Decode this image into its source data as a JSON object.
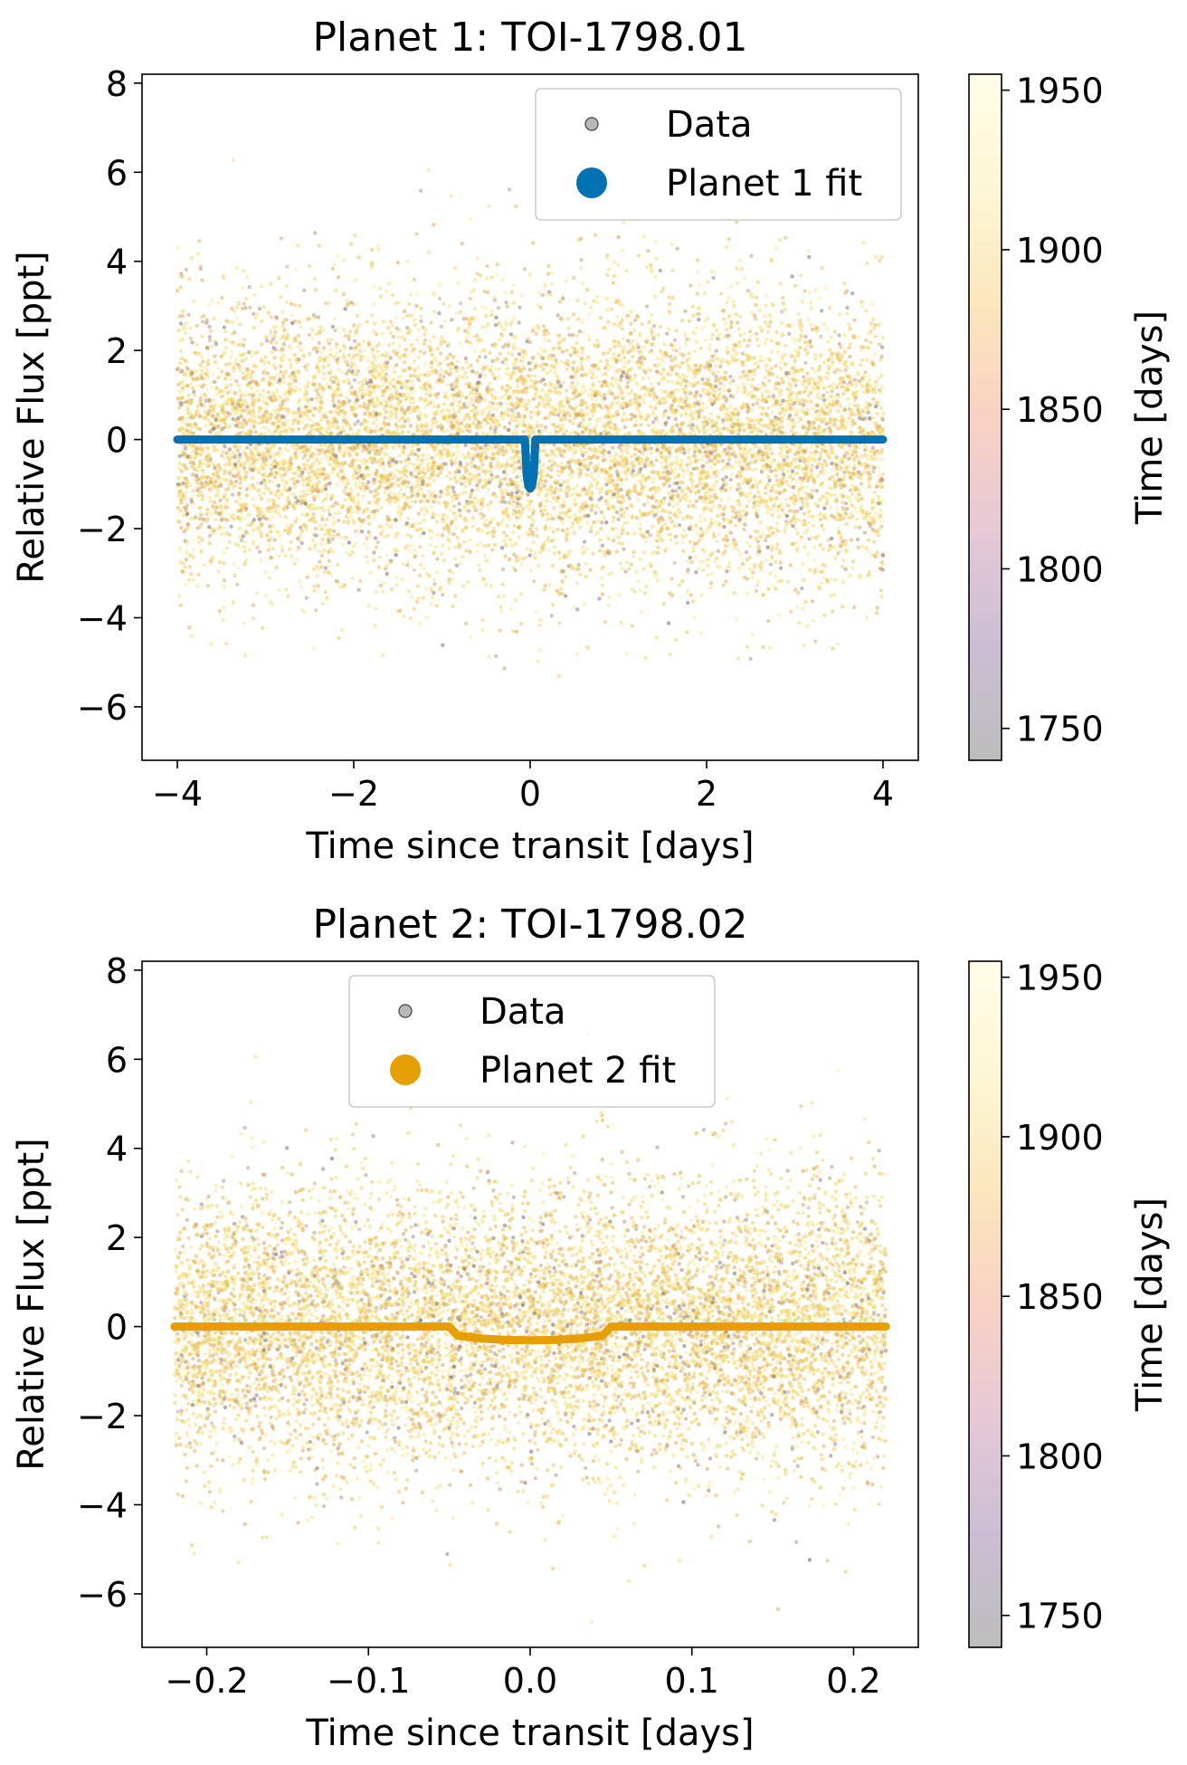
{
  "chart_data": [
    {
      "type": "scatter",
      "title": "Planet 1: TOI-1798.01",
      "xlabel": "Time since transit [days]",
      "ylabel": "Relative Flux [ppt]",
      "xlim": [
        -4.4,
        4.4
      ],
      "ylim": [
        -7.2,
        8.2
      ],
      "xticks": [
        -4,
        -2,
        0,
        2,
        4
      ],
      "xtick_labels": [
        "−4",
        "−2",
        "0",
        "2",
        "4"
      ],
      "yticks": [
        -6,
        -4,
        -2,
        0,
        2,
        4,
        6,
        8
      ],
      "ytick_labels": [
        "−6",
        "−4",
        "−2",
        "0",
        "2",
        "4",
        "6",
        "8"
      ],
      "legend_position": "top-right",
      "legend": [
        {
          "label": "Data",
          "color": "#888888"
        },
        {
          "label": "Planet 1 fit",
          "color": "#0072b2"
        }
      ],
      "series": [
        {
          "name": "Data",
          "kind": "scatter",
          "x_range": [
            -4,
            4
          ],
          "y_mean": 0,
          "y_sigma": 1.6,
          "point_count": 9000
        },
        {
          "name": "Planet 1 fit",
          "kind": "transit-model",
          "color": "#0072b2",
          "transit_depth_ppt": 1.1,
          "transit_duration_days": 0.12,
          "x": [
            -4,
            -0.06,
            -0.04,
            -0.02,
            0,
            0.02,
            0.04,
            0.06,
            4
          ],
          "y": [
            0,
            0,
            -0.8,
            -1.05,
            -1.1,
            -1.05,
            -0.8,
            0,
            0
          ]
        }
      ],
      "colorbar": {
        "label": "Time [days]",
        "range": [
          1740,
          1955
        ],
        "ticks": [
          1750,
          1800,
          1850,
          1900,
          1950
        ],
        "tick_labels": [
          "1750",
          "1800",
          "1850",
          "1900",
          "1950"
        ],
        "colors": [
          "#bdbdbd",
          "#cbbed4",
          "#e6c8d6",
          "#f8d2c4",
          "#fce6bd",
          "#fdf6d6",
          "#fffde8"
        ]
      }
    },
    {
      "type": "scatter",
      "title": "Planet 2: TOI-1798.02",
      "xlabel": "Time since transit [days]",
      "ylabel": "Relative Flux [ppt]",
      "xlim": [
        -0.24,
        0.24
      ],
      "ylim": [
        -7.2,
        8.2
      ],
      "xticks": [
        -0.2,
        -0.1,
        0.0,
        0.1,
        0.2
      ],
      "xtick_labels": [
        "−0.2",
        "−0.1",
        "0.0",
        "0.1",
        "0.2"
      ],
      "yticks": [
        -6,
        -4,
        -2,
        0,
        2,
        4,
        6,
        8
      ],
      "ytick_labels": [
        "−6",
        "−4",
        "−2",
        "0",
        "2",
        "4",
        "6",
        "8"
      ],
      "legend_position": "top-center",
      "legend": [
        {
          "label": "Data",
          "color": "#888888"
        },
        {
          "label": "Planet 2 fit",
          "color": "#e69f00"
        }
      ],
      "series": [
        {
          "name": "Data",
          "kind": "scatter",
          "x_range": [
            -0.22,
            0.22
          ],
          "y_mean": 0,
          "y_sigma": 1.6,
          "point_count": 9000
        },
        {
          "name": "Planet 2 fit",
          "kind": "transit-model",
          "color": "#e69f00",
          "transit_depth_ppt": 0.32,
          "transit_duration_days": 0.1,
          "x": [
            -0.22,
            -0.05,
            -0.045,
            -0.03,
            -0.015,
            0,
            0.015,
            0.03,
            0.045,
            0.05,
            0.22
          ],
          "y": [
            0,
            0,
            -0.2,
            -0.27,
            -0.3,
            -0.31,
            -0.3,
            -0.27,
            -0.2,
            0,
            0
          ]
        }
      ],
      "colorbar": {
        "label": "Time [days]",
        "range": [
          1740,
          1955
        ],
        "ticks": [
          1750,
          1800,
          1850,
          1900,
          1950
        ],
        "tick_labels": [
          "1750",
          "1800",
          "1850",
          "1900",
          "1950"
        ],
        "colors": [
          "#bdbdbd",
          "#cbbed4",
          "#e6c8d6",
          "#f8d2c4",
          "#fce6bd",
          "#fdf6d6",
          "#fffde8"
        ]
      }
    }
  ]
}
